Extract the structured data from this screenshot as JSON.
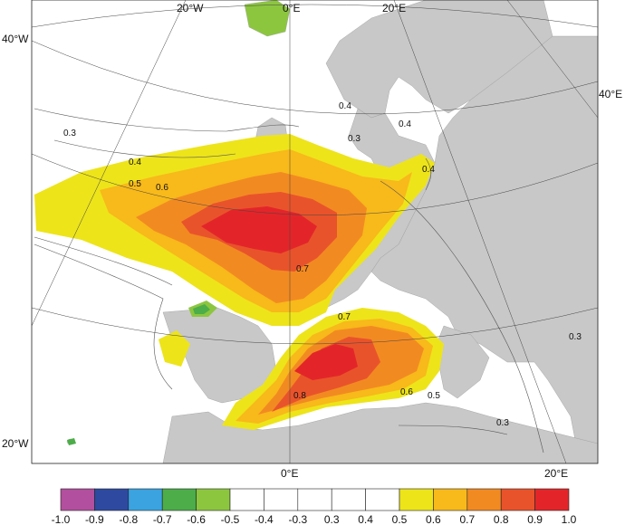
{
  "map": {
    "graticule_labels": {
      "top": [
        "20°W",
        "0°E",
        "20°E"
      ],
      "bottom": [
        "0°E",
        "20°E"
      ],
      "left": [
        "40°W",
        "20°W"
      ],
      "right": [
        "40°E"
      ]
    },
    "contour_labels": [
      "0.3",
      "0.4",
      "0.5",
      "0.6",
      "0.7",
      "0.8",
      "0.7",
      "0.6",
      "0.5",
      "0.4",
      "0.3",
      "0.4",
      "0.3",
      "0.4",
      "0.3"
    ],
    "colors": {
      "land": "#c8c8c8",
      "water": "#ffffff",
      "c05": "#ede41a",
      "c06": "#f8b91a",
      "c07": "#f28a22",
      "c08": "#e9532b",
      "c09": "#e3252a",
      "neg05": "#8cc63f",
      "neg06": "#4cad49"
    }
  },
  "colorbar": {
    "tick_labels": [
      "-1.0",
      "-0.9",
      "-0.8",
      "-0.7",
      "-0.6",
      "-0.5",
      "-0.4",
      "-0.3",
      "0.3",
      "0.4",
      "0.5",
      "0.6",
      "0.7",
      "0.8",
      "0.9",
      "1.0"
    ],
    "colors": [
      "#b24f9e",
      "#2d4aa0",
      "#3aa3e0",
      "#4cad49",
      "#8cc63f",
      "#ffffff",
      "#ffffff",
      "#ffffff",
      "#ffffff",
      "#ffffff",
      "#ede41a",
      "#f8b91a",
      "#f28a22",
      "#e9532b",
      "#e3252a"
    ]
  }
}
